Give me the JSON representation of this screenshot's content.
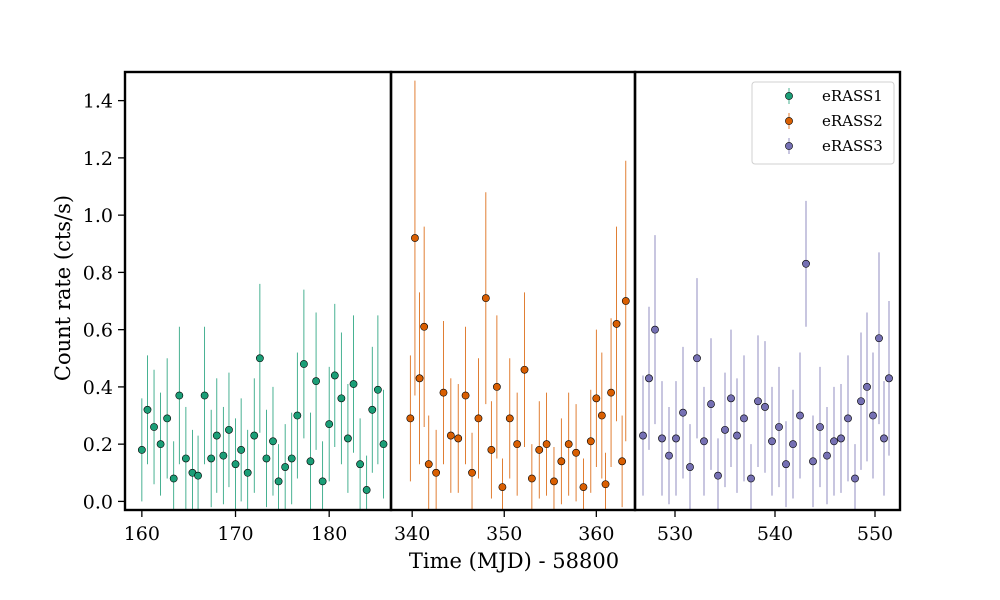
{
  "chart_data": {
    "type": "scatter",
    "xlabel": "Time (MJD) - 58800",
    "ylabel": "Count rate (cts/s)",
    "ylim": [
      -0.03,
      1.5
    ],
    "yticks": [
      0.0,
      0.2,
      0.4,
      0.6,
      0.8,
      1.0,
      1.2,
      1.4
    ],
    "ytick_labels": [
      "0.0",
      "0.2",
      "0.4",
      "0.6",
      "0.8",
      "1.0",
      "1.2",
      "1.4"
    ],
    "legend_position": "top-right",
    "grid": false,
    "panels": [
      {
        "xlim": [
          158.2,
          186.6
        ],
        "xticks": [
          160,
          170,
          180
        ],
        "xtick_labels": [
          "160",
          "170",
          "180"
        ],
        "series": [
          {
            "name": "eRASS1",
            "color": "#1b9e77",
            "x": [
              160.0,
              160.6,
              161.3,
              162.0,
              162.7,
              163.4,
              164.0,
              164.7,
              165.4,
              166.0,
              166.7,
              167.4,
              168.0,
              168.7,
              169.3,
              170.0,
              170.6,
              171.3,
              172.0,
              172.6,
              173.3,
              174.0,
              174.6,
              175.3,
              176.0,
              176.6,
              177.3,
              178.0,
              178.6,
              179.3,
              180.0,
              180.6,
              181.3,
              182.0,
              182.6,
              183.3,
              184.0,
              184.6,
              185.2,
              185.8
            ],
            "y": [
              0.18,
              0.32,
              0.26,
              0.2,
              0.29,
              0.08,
              0.37,
              0.15,
              0.1,
              0.09,
              0.37,
              0.15,
              0.23,
              0.16,
              0.25,
              0.13,
              0.18,
              0.1,
              0.23,
              0.5,
              0.15,
              0.21,
              0.07,
              0.12,
              0.15,
              0.3,
              0.48,
              0.14,
              0.42,
              0.07,
              0.27,
              0.44,
              0.36,
              0.22,
              0.41,
              0.13,
              0.04,
              0.32,
              0.39,
              0.2
            ],
            "yerr": [
              0.18,
              0.19,
              0.2,
              0.18,
              0.21,
              0.13,
              0.24,
              0.18,
              0.15,
              0.14,
              0.24,
              0.17,
              0.2,
              0.17,
              0.2,
              0.16,
              0.18,
              0.15,
              0.2,
              0.26,
              0.17,
              0.19,
              0.13,
              0.15,
              0.16,
              0.22,
              0.26,
              0.17,
              0.24,
              0.14,
              0.2,
              0.25,
              0.23,
              0.19,
              0.24,
              0.16,
              0.12,
              0.22,
              0.26,
              0.19
            ]
          }
        ]
      },
      {
        "xlim": [
          337.7,
          364.2
        ],
        "xticks": [
          340,
          350,
          360
        ],
        "xtick_labels": [
          "340",
          "350",
          "360"
        ],
        "series": [
          {
            "name": "eRASS2",
            "color": "#d95f02",
            "x": [
              339.8,
              340.3,
              340.8,
              341.3,
              341.8,
              342.6,
              343.4,
              344.2,
              345.0,
              345.8,
              346.5,
              347.2,
              348.0,
              348.6,
              349.2,
              349.8,
              350.6,
              351.4,
              352.2,
              353.0,
              353.8,
              354.6,
              355.4,
              356.2,
              357.0,
              357.8,
              358.6,
              359.4,
              360.0,
              360.6,
              361.0,
              361.6,
              362.2,
              362.8,
              363.2
            ],
            "y": [
              0.29,
              0.92,
              0.43,
              0.61,
              0.13,
              0.1,
              0.38,
              0.23,
              0.22,
              0.37,
              0.1,
              0.29,
              0.71,
              0.18,
              0.4,
              0.05,
              0.29,
              0.2,
              0.46,
              0.08,
              0.18,
              0.2,
              0.07,
              0.14,
              0.2,
              0.17,
              0.05,
              0.21,
              0.36,
              0.3,
              0.06,
              0.38,
              0.62,
              0.14,
              0.7
            ],
            "yerr": [
              0.22,
              0.55,
              0.3,
              0.35,
              0.17,
              0.15,
              0.25,
              0.2,
              0.19,
              0.24,
              0.14,
              0.21,
              0.37,
              0.17,
              0.25,
              0.1,
              0.21,
              0.18,
              0.27,
              0.12,
              0.17,
              0.18,
              0.12,
              0.15,
              0.18,
              0.17,
              0.1,
              0.18,
              0.24,
              0.22,
              0.11,
              0.26,
              0.34,
              0.16,
              0.49
            ]
          }
        ]
      },
      {
        "xlim": [
          526.0,
          552.5
        ],
        "xticks": [
          530,
          540,
          550
        ],
        "xtick_labels": [
          "530",
          "540",
          "550"
        ],
        "series": [
          {
            "name": "eRASS3",
            "color": "#7570b3",
            "x": [
              526.8,
              527.4,
              528.0,
              528.7,
              529.4,
              530.1,
              530.8,
              531.5,
              532.2,
              532.9,
              533.6,
              534.3,
              535.0,
              535.6,
              536.2,
              536.9,
              537.6,
              538.3,
              539.0,
              539.7,
              540.4,
              541.1,
              541.8,
              542.5,
              543.1,
              543.8,
              544.5,
              545.2,
              545.9,
              546.6,
              547.3,
              548.0,
              548.6,
              549.2,
              549.8,
              550.4,
              550.9,
              551.4
            ],
            "y": [
              0.23,
              0.43,
              0.6,
              0.22,
              0.16,
              0.22,
              0.31,
              0.12,
              0.5,
              0.21,
              0.34,
              0.09,
              0.25,
              0.36,
              0.23,
              0.29,
              0.08,
              0.35,
              0.33,
              0.21,
              0.26,
              0.13,
              0.2,
              0.3,
              0.83,
              0.14,
              0.26,
              0.16,
              0.21,
              0.22,
              0.29,
              0.08,
              0.35,
              0.4,
              0.3,
              0.57,
              0.22,
              0.43
            ],
            "yerr": [
              0.21,
              0.25,
              0.33,
              0.2,
              0.17,
              0.2,
              0.23,
              0.15,
              0.28,
              0.19,
              0.23,
              0.13,
              0.2,
              0.24,
              0.2,
              0.22,
              0.12,
              0.23,
              0.23,
              0.19,
              0.21,
              0.15,
              0.19,
              0.22,
              0.22,
              0.16,
              0.21,
              0.17,
              0.19,
              0.19,
              0.22,
              0.12,
              0.24,
              0.26,
              0.22,
              0.3,
              0.2,
              0.27
            ]
          }
        ]
      }
    ]
  }
}
